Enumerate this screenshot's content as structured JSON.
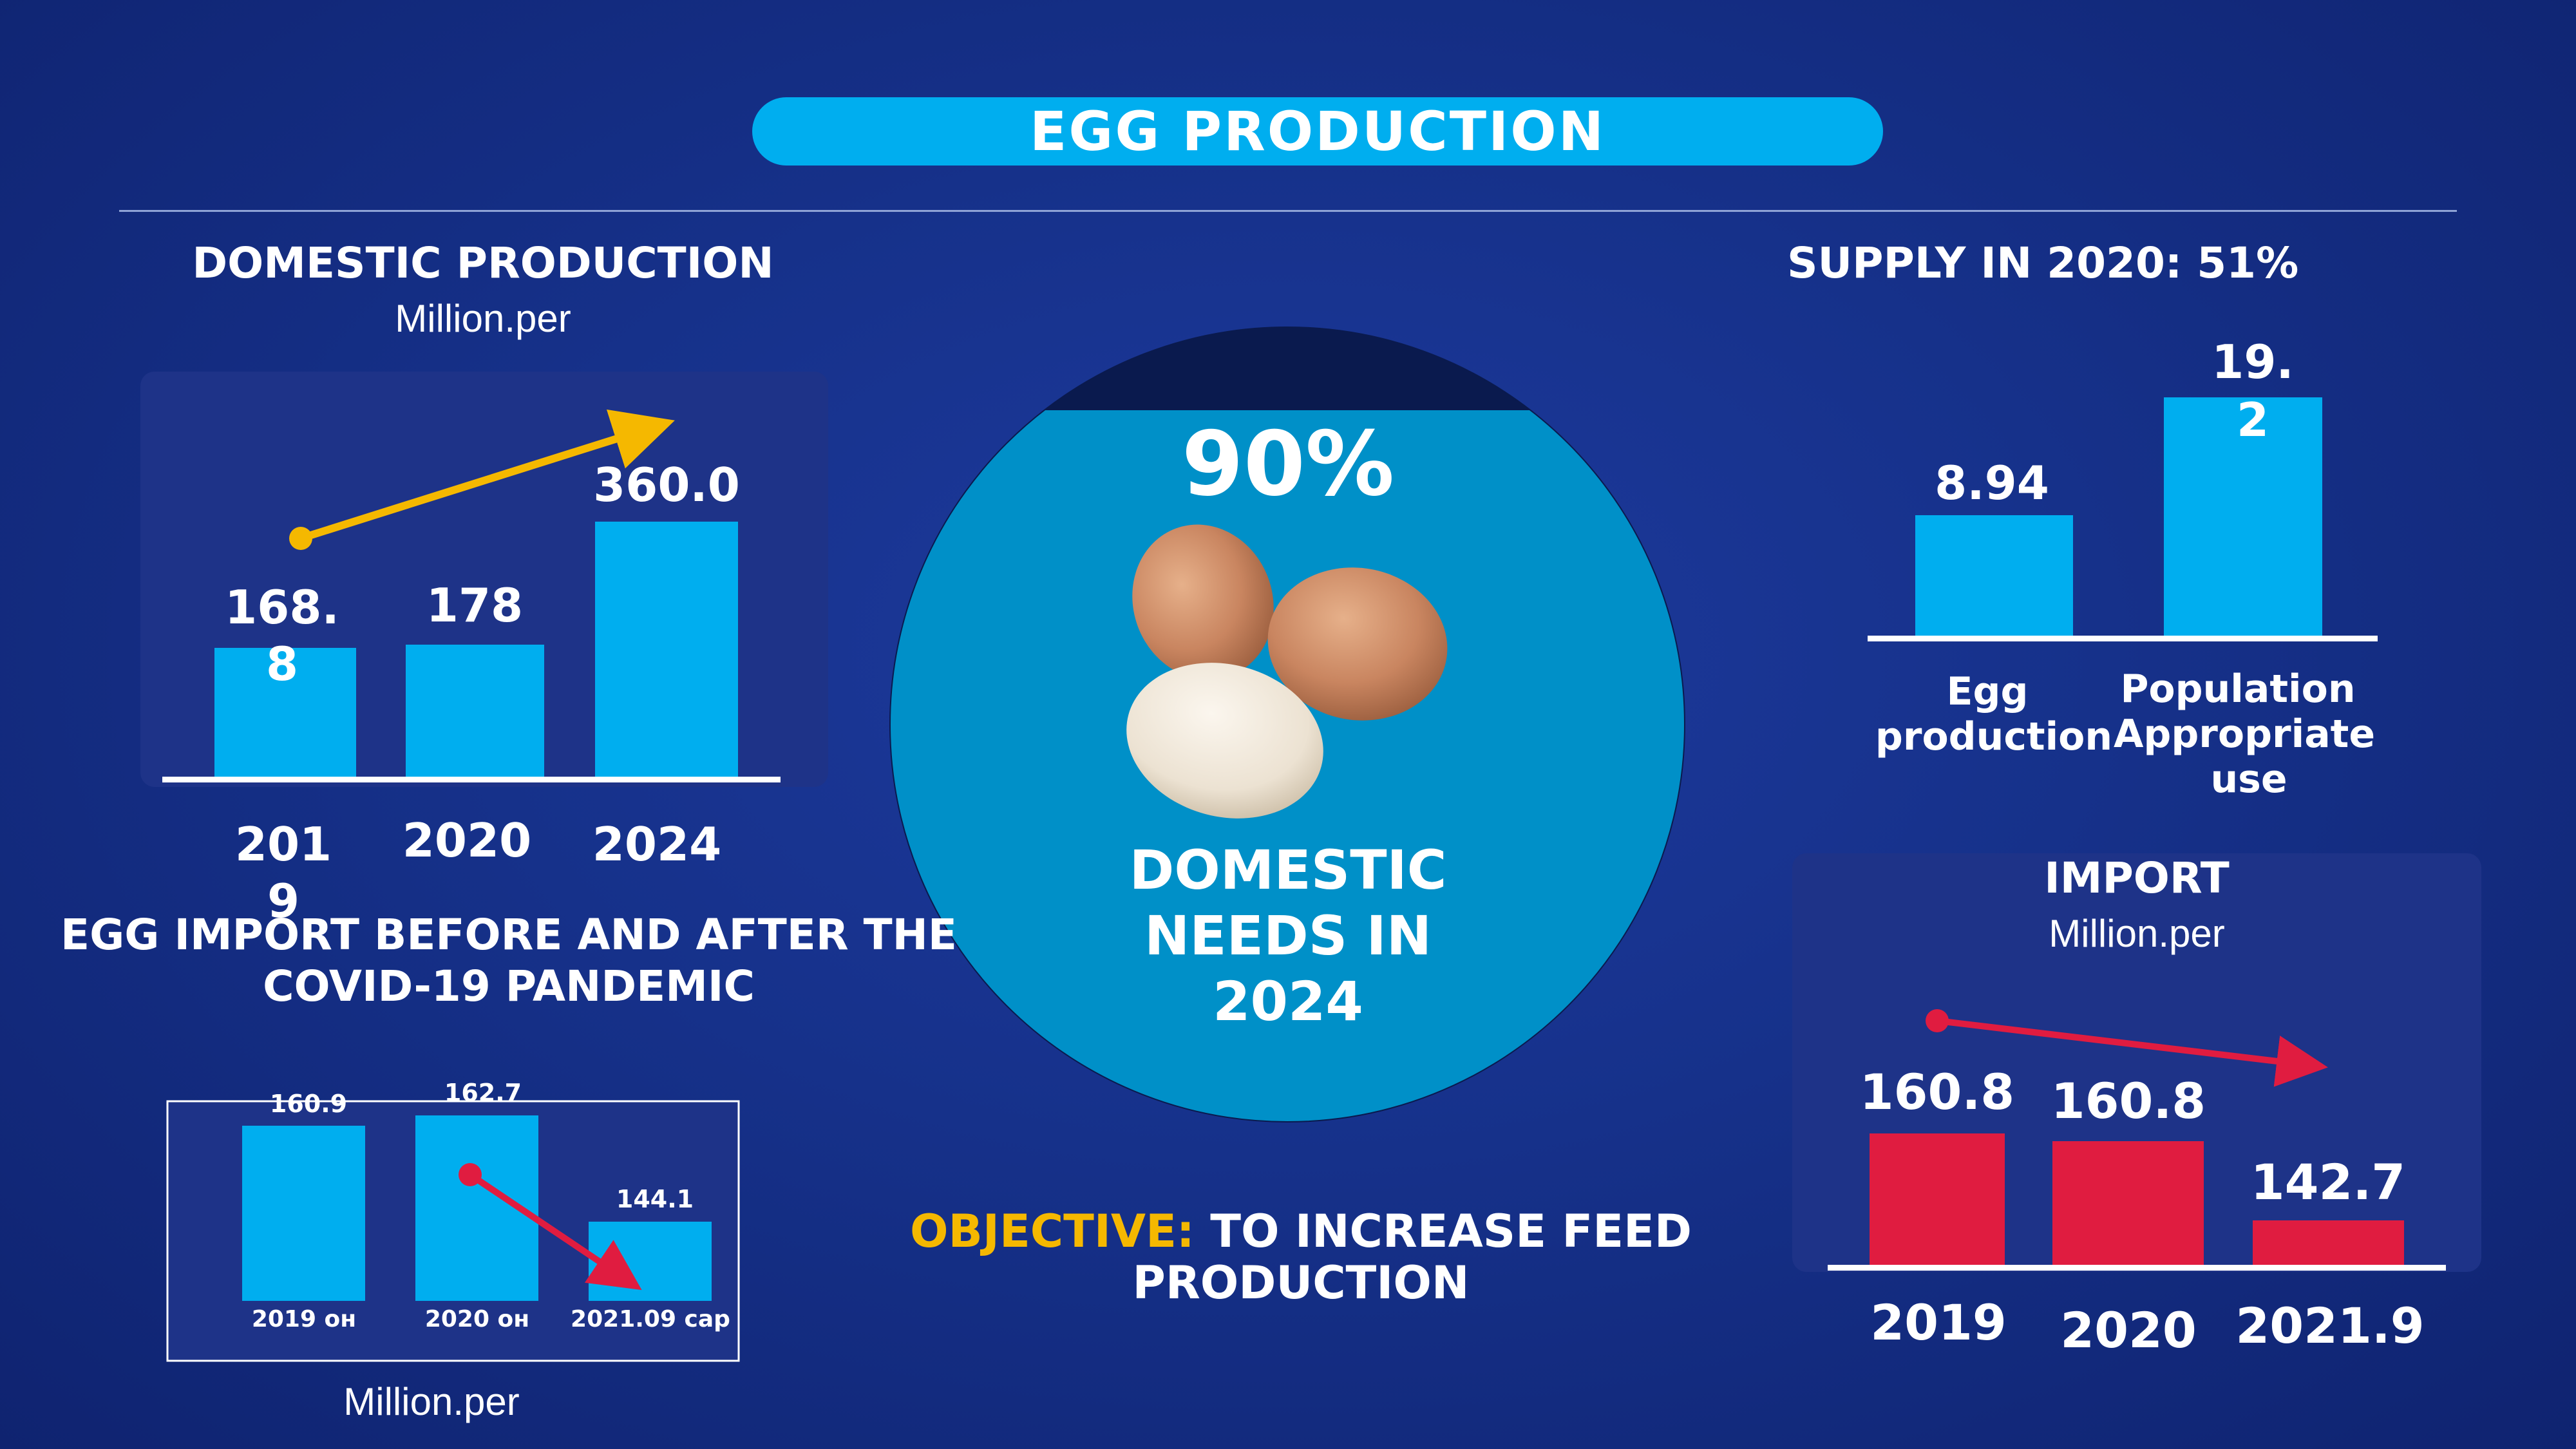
{
  "title": "EGG PRODUCTION",
  "domestic": {
    "heading": "DOMESTIC PRODUCTION",
    "unit": "Million.per",
    "value_labels": [
      "168.\n8",
      "178",
      "360.0"
    ],
    "tick_labels": [
      "201\n9",
      "2020",
      "2024"
    ]
  },
  "supply": {
    "heading": "SUPPLY IN 2020: 51%",
    "value_labels": [
      "8.94",
      "19.\n2"
    ],
    "tick_labels": [
      "Egg\nproduction",
      "Population\nAppropriate\nuse"
    ]
  },
  "center": {
    "percent": "90%",
    "caption_lines": [
      "DOMESTIC",
      "NEEDS IN",
      "2024"
    ]
  },
  "import_before_after": {
    "heading_lines": [
      "EGG IMPORT BEFORE AND AFTER THE",
      "COVID-19 PANDEMIC"
    ],
    "unit": "Million.per",
    "value_labels": [
      "160.9",
      "162.7",
      "144.1"
    ],
    "tick_labels": [
      "2019 он",
      "2020 он",
      "2021.09 сар"
    ]
  },
  "objective": {
    "label": "OBJECTIVE:",
    "text_lines": [
      "TO INCREASE FEED",
      "PRODUCTION"
    ]
  },
  "import": {
    "heading": "IMPORT",
    "unit": "Million.per",
    "value_labels": [
      "160.8",
      "160.8",
      "142.7"
    ],
    "tick_labels": [
      "2019",
      "2020",
      "2021.9"
    ]
  },
  "colors": {
    "background": "#16318a",
    "accent_blue": "#00aeef",
    "import_red": "#e01c40",
    "trend_up": "#f5b800",
    "objective_label": "#f5b800"
  },
  "chart_data": [
    {
      "type": "bar",
      "title": "DOMESTIC PRODUCTION",
      "subtitle": "Million.per",
      "categories": [
        "2019",
        "2020",
        "2024"
      ],
      "values": [
        168.8,
        178,
        360.0
      ],
      "ylim": [
        0,
        360
      ],
      "trend": "up",
      "grid": false,
      "legend": "none"
    },
    {
      "type": "bar",
      "title": "SUPPLY IN 2020: 51%",
      "categories": [
        "Egg production",
        "Population Appropriate use"
      ],
      "values": [
        8.94,
        19.2
      ],
      "ylim": [
        0,
        19.2
      ],
      "grid": false,
      "legend": "none"
    },
    {
      "type": "bar",
      "title": "EGG IMPORT BEFORE AND AFTER THE COVID-19 PANDEMIC",
      "subtitle": "Million.per",
      "categories": [
        "2019 он",
        "2020 он",
        "2021.09 сар"
      ],
      "values": [
        160.9,
        162.7,
        144.1
      ],
      "trend": "down",
      "grid": false,
      "legend": "none"
    },
    {
      "type": "bar",
      "title": "IMPORT",
      "subtitle": "Million.per",
      "categories": [
        "2019",
        "2020",
        "2021.9"
      ],
      "values": [
        160.8,
        160.8,
        142.7
      ],
      "trend": "down",
      "grid": false,
      "legend": "none"
    }
  ]
}
